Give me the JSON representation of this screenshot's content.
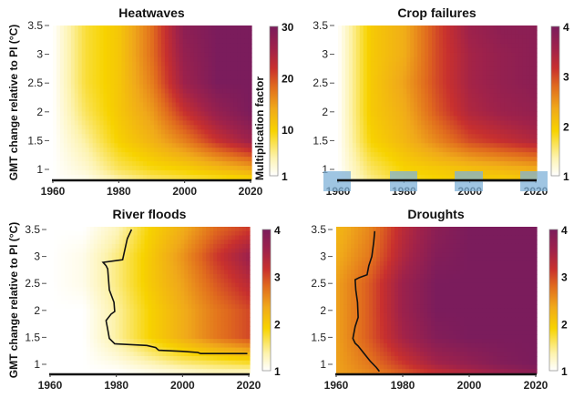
{
  "chart_data": [
    {
      "type": "heatmap",
      "title": "Heatwaves",
      "ylabel": "GMT change relative to PI (°C)",
      "colorbar_label": "Multiplication factor",
      "xlim": [
        1960,
        2020
      ],
      "ylim": [
        0.83,
        3.5
      ],
      "x_ticks": [
        "1960",
        "1980",
        "2000",
        "2020"
      ],
      "y_ticks": [
        "1",
        "1.5",
        "2",
        "2.5",
        "3",
        "3.5"
      ],
      "colorbar_range": [
        1,
        30
      ],
      "colorbar_ticks": [
        "1",
        "10",
        "20",
        "30"
      ],
      "years": [
        1960,
        1970,
        1980,
        1990,
        2000,
        2010,
        2020
      ],
      "gmt": [
        0.85,
        1,
        1.5,
        2,
        2.5,
        3,
        3.5
      ],
      "values": [
        [
          1,
          2,
          5,
          7,
          8,
          9,
          10
        ],
        [
          1,
          3,
          7,
          9,
          10,
          12,
          14
        ],
        [
          1,
          5,
          10,
          13,
          17,
          22,
          26
        ],
        [
          1,
          7,
          11,
          15,
          22,
          27,
          30
        ],
        [
          1,
          8,
          11,
          17,
          26,
          30,
          30
        ],
        [
          1,
          8,
          11,
          18,
          27,
          30,
          30
        ],
        [
          1,
          8,
          11,
          18,
          28,
          30,
          30
        ]
      ],
      "contour": []
    },
    {
      "type": "heatmap",
      "title": "Crop failures",
      "ylabel": "",
      "colorbar_label": "",
      "xlim": [
        1960,
        2020
      ],
      "ylim": [
        0.83,
        3.5
      ],
      "x_ticks": [
        "1960",
        "1980",
        "2000",
        "2020"
      ],
      "y_ticks": [
        "1",
        "1.5",
        "2",
        "2.5",
        "3",
        "3.5"
      ],
      "colorbar_range": [
        1,
        4
      ],
      "colorbar_ticks": [
        "1",
        "2",
        "3",
        "4"
      ],
      "years": [
        1960,
        1970,
        1980,
        1990,
        2000,
        2010,
        2020
      ],
      "gmt": [
        0.85,
        1,
        1.5,
        2,
        2.5,
        3,
        3.5
      ],
      "values": [
        [
          1,
          1.5,
          1.8,
          1.9,
          2.0,
          2.0,
          2.1
        ],
        [
          1,
          1.6,
          1.9,
          2.0,
          2.1,
          2.2,
          2.3
        ],
        [
          1,
          1.9,
          2.2,
          2.6,
          3.0,
          3.2,
          3.4
        ],
        [
          1,
          2.0,
          2.3,
          2.9,
          3.4,
          3.6,
          3.7
        ],
        [
          1,
          2.0,
          2.4,
          3.0,
          3.5,
          3.7,
          3.8
        ],
        [
          1,
          2.0,
          2.3,
          3.0,
          3.5,
          3.7,
          3.8
        ],
        [
          1,
          2.0,
          2.3,
          3.0,
          3.6,
          3.8,
          3.8
        ]
      ],
      "contour": [],
      "highlight_color": "#7fb2d8"
    },
    {
      "type": "heatmap",
      "title": "River floods",
      "ylabel": "GMT change relative to PI (°C)",
      "colorbar_label": "",
      "xlim": [
        1960,
        2020
      ],
      "ylim": [
        0.83,
        3.55
      ],
      "x_ticks": [
        "1960",
        "1980",
        "2000",
        "2020"
      ],
      "y_ticks": [
        "1",
        "1.5",
        "2",
        "2.5",
        "3",
        "3.5"
      ],
      "colorbar_range": [
        1,
        4
      ],
      "colorbar_ticks": [
        "1",
        "2",
        "3",
        "4"
      ],
      "years": [
        1960,
        1970,
        1980,
        1990,
        2000,
        2010,
        2020
      ],
      "gmt": [
        0.85,
        1,
        1.5,
        2,
        2.5,
        3,
        3.5
      ],
      "values": [
        [
          1,
          1,
          1,
          1.1,
          1.2,
          1.3,
          1.3
        ],
        [
          1,
          1,
          1.1,
          1.3,
          1.5,
          1.6,
          1.7
        ],
        [
          1,
          1,
          1.4,
          1.9,
          2.3,
          2.7,
          3.0
        ],
        [
          1,
          1,
          1.4,
          1.9,
          2.3,
          2.7,
          3.0
        ],
        [
          1,
          1.1,
          1.5,
          2.0,
          2.4,
          2.9,
          3.3
        ],
        [
          1,
          1.1,
          1.5,
          2.0,
          2.5,
          3.1,
          3.6
        ],
        [
          1,
          1,
          1.3,
          1.9,
          2.3,
          2.8,
          3.1
        ]
      ],
      "contour": [
        [
          1984.6,
          3.5
        ],
        [
          1983.3,
          3.33
        ],
        [
          1981.9,
          2.94
        ],
        [
          1976.0,
          2.89
        ],
        [
          1976.9,
          2.83
        ],
        [
          1977.4,
          2.77
        ],
        [
          1977.9,
          2.38
        ],
        [
          1979.3,
          2.15
        ],
        [
          1979.5,
          1.98
        ],
        [
          1978.4,
          1.93
        ],
        [
          1976.9,
          1.81
        ],
        [
          1977.4,
          1.65
        ],
        [
          1977.9,
          1.48
        ],
        [
          1979.5,
          1.38
        ],
        [
          1989.2,
          1.35
        ],
        [
          1991.9,
          1.31
        ],
        [
          1992.8,
          1.26
        ],
        [
          2000.1,
          1.24
        ],
        [
          2004.6,
          1.22
        ],
        [
          2005.5,
          1.2
        ],
        [
          2019.6,
          1.2
        ]
      ]
    },
    {
      "type": "heatmap",
      "title": "Droughts",
      "ylabel": "",
      "colorbar_label": "",
      "xlim": [
        1960,
        2020
      ],
      "ylim": [
        0.83,
        3.55
      ],
      "x_ticks": [
        "1960",
        "1980",
        "2000",
        "2020"
      ],
      "y_ticks": [
        "1",
        "1.5",
        "2",
        "2.5",
        "3",
        "3.5"
      ],
      "colorbar_range": [
        1,
        4
      ],
      "colorbar_ticks": [
        "1",
        "2",
        "3",
        "4"
      ],
      "years": [
        1960,
        1970,
        1980,
        1990,
        2000,
        2010,
        2020
      ],
      "gmt": [
        0.85,
        1,
        1.5,
        2,
        2.5,
        3,
        3.5
      ],
      "values": [
        [
          2.4,
          2.6,
          2.9,
          3.2,
          3.4,
          3.6,
          3.8
        ],
        [
          2.4,
          2.7,
          3.1,
          3.5,
          3.7,
          3.9,
          4
        ],
        [
          2.4,
          2.9,
          3.5,
          3.9,
          4,
          4,
          4
        ],
        [
          2.4,
          2.9,
          3.6,
          4,
          4,
          4,
          4
        ],
        [
          2.4,
          2.9,
          3.6,
          4,
          4,
          4,
          4
        ],
        [
          2.3,
          2.7,
          3.4,
          3.9,
          4,
          4,
          4
        ],
        [
          2.2,
          2.6,
          3.3,
          3.8,
          4,
          4,
          4
        ]
      ],
      "contour": [
        [
          1971.6,
          3.47
        ],
        [
          1971.3,
          3.27
        ],
        [
          1970.7,
          3.0
        ],
        [
          1969.8,
          2.83
        ],
        [
          1969.3,
          2.66
        ],
        [
          1967.0,
          2.61
        ],
        [
          1965.7,
          2.57
        ],
        [
          1965.9,
          2.38
        ],
        [
          1966.4,
          2.15
        ],
        [
          1966.6,
          1.87
        ],
        [
          1965.7,
          1.7
        ],
        [
          1965.0,
          1.48
        ],
        [
          1965.7,
          1.39
        ],
        [
          1966.6,
          1.34
        ],
        [
          1968.4,
          1.2
        ],
        [
          1970.2,
          1.06
        ],
        [
          1972.1,
          0.94
        ],
        [
          1973.0,
          0.87
        ]
      ]
    }
  ],
  "colors": {
    "scale": [
      "#ffffff",
      "#fdf3b0",
      "#f7d300",
      "#f0a91a",
      "#e06a1e",
      "#c8302e",
      "#a0224a",
      "#7b1c5c"
    ],
    "contour": "#111111",
    "axis": "#111111"
  }
}
